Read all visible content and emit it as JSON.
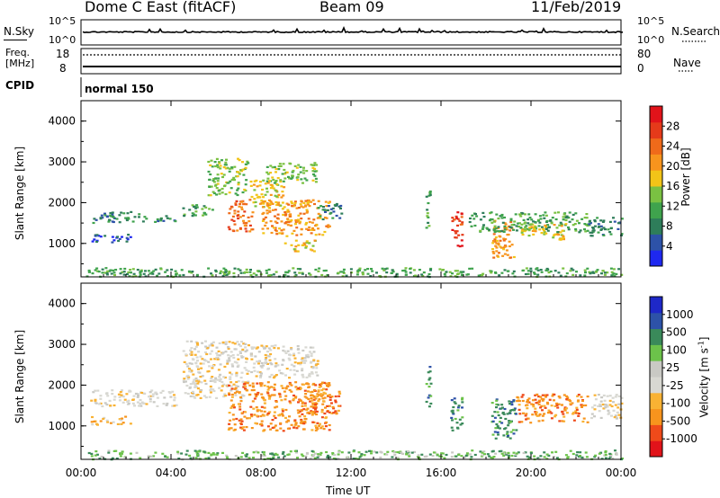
{
  "header": {
    "station": "Dome C East (fitACF)",
    "beam": "Beam 09",
    "date": "11/Feb/2019"
  },
  "small_panels": {
    "nsky_label": "N.Sky",
    "nsky_ticks": [
      "10^5",
      "10^0"
    ],
    "nsearch_label": "N.Search",
    "nsearch_ticks": [
      "10^5",
      "10^0"
    ],
    "freq_label_1": "Freq.",
    "freq_label_2": "[MHz]",
    "freq_ticks": [
      "18",
      "8"
    ],
    "nave_label": "Nave",
    "nave_ticks": [
      "80",
      "0"
    ],
    "cpid_label": "CPID",
    "cpid_text": "normal 150"
  },
  "colors": {
    "power_bar": [
      "#1e28f0",
      "#2d52a8",
      "#2e7d5a",
      "#3fa34d",
      "#7ac142",
      "#f2c418",
      "#f7941d",
      "#ef6a1a",
      "#e53a1a",
      "#e1131a"
    ],
    "velocity_bar": [
      "#e1131a",
      "#ef4a1a",
      "#f7941d",
      "#f9b233",
      "#d8d8d2",
      "#c9c9c4",
      "#6cc24a",
      "#3a8a5a",
      "#2d52a8",
      "#1e28c8"
    ]
  },
  "power_colorbar": {
    "label": "Power [dB]",
    "ticks": [
      "28",
      "24",
      "20",
      "16",
      "12",
      "8",
      "4"
    ]
  },
  "velocity_colorbar": {
    "label_main": "Velocity",
    "label_unit": "[m s",
    "label_sup": "-1",
    "label_close": "]",
    "ticks": [
      "1000",
      "500",
      "100",
      "25",
      "-25",
      "-100",
      "-500",
      "-1000"
    ]
  },
  "chart_data": {
    "type": "heatmap",
    "xlabel": "Time UT",
    "x_ticks": [
      "00:00",
      "04:00",
      "08:00",
      "12:00",
      "16:00",
      "20:00",
      "00:00"
    ],
    "ylabel": "Slant Range [km]",
    "y_ticks": [
      "4000",
      "3000",
      "2000",
      "1000"
    ],
    "xlim_hours": [
      0,
      24
    ],
    "ylim_km": [
      180,
      4500
    ],
    "panels": [
      {
        "name": "Power",
        "colorbar_unit": "dB",
        "scatter_blobs": [
          {
            "t0": 0.4,
            "t1": 2.6,
            "r0": 1500,
            "r1": 1800,
            "level": 2
          },
          {
            "t0": 2.6,
            "t1": 4.2,
            "r0": 1550,
            "r1": 1700,
            "level": 2
          },
          {
            "t0": 0.4,
            "t1": 2.2,
            "r0": 1050,
            "r1": 1250,
            "level": 1
          },
          {
            "t0": 4.5,
            "t1": 5.8,
            "r0": 1700,
            "r1": 2000,
            "level": 3
          },
          {
            "t0": 5.6,
            "t1": 7.4,
            "r0": 2200,
            "r1": 3100,
            "level": 4
          },
          {
            "t0": 6.5,
            "t1": 7.6,
            "r0": 1300,
            "r1": 2100,
            "level": 7
          },
          {
            "t0": 7.5,
            "t1": 9.0,
            "r0": 1900,
            "r1": 2600,
            "level": 5
          },
          {
            "t0": 8.0,
            "t1": 11.0,
            "r0": 1200,
            "r1": 2100,
            "level": 6
          },
          {
            "t0": 8.2,
            "t1": 10.5,
            "r0": 2500,
            "r1": 3000,
            "level": 4
          },
          {
            "t0": 9.0,
            "t1": 10.4,
            "r0": 800,
            "r1": 1100,
            "level": 5
          },
          {
            "t0": 10.5,
            "t1": 11.6,
            "r0": 1600,
            "r1": 2000,
            "level": 2
          },
          {
            "t0": 15.3,
            "t1": 15.5,
            "r0": 1400,
            "r1": 2500,
            "level": 3
          },
          {
            "t0": 16.4,
            "t1": 16.9,
            "r0": 900,
            "r1": 1800,
            "level": 8
          },
          {
            "t0": 18.2,
            "t1": 19.2,
            "r0": 600,
            "r1": 1600,
            "level": 6
          },
          {
            "t0": 17.2,
            "t1": 22.5,
            "r0": 1300,
            "r1": 1800,
            "level": 3
          },
          {
            "t0": 19.5,
            "t1": 21.5,
            "r0": 1100,
            "r1": 1500,
            "level": 5
          },
          {
            "t0": 22.5,
            "t1": 24.0,
            "r0": 1200,
            "r1": 1700,
            "level": 2
          },
          {
            "t0": 0.2,
            "t1": 24.0,
            "r0": 200,
            "r1": 420,
            "level": 3
          }
        ]
      },
      {
        "name": "Velocity",
        "colorbar_unit": "m s^-1",
        "scatter_blobs": [
          {
            "t0": 0.4,
            "t1": 4.2,
            "r0": 1500,
            "r1": 1900,
            "level": 4
          },
          {
            "t0": 0.4,
            "t1": 2.2,
            "r0": 1050,
            "r1": 1250,
            "level": 3
          },
          {
            "t0": 4.5,
            "t1": 7.4,
            "r0": 1700,
            "r1": 3100,
            "level": 4
          },
          {
            "t0": 6.5,
            "t1": 11.0,
            "r0": 900,
            "r1": 2100,
            "level": 2
          },
          {
            "t0": 7.5,
            "t1": 10.5,
            "r0": 2200,
            "r1": 3000,
            "level": 4
          },
          {
            "t0": 10.0,
            "t1": 11.5,
            "r0": 1300,
            "r1": 1900,
            "level": 2
          },
          {
            "t0": 15.3,
            "t1": 15.5,
            "r0": 1400,
            "r1": 2500,
            "level": 7
          },
          {
            "t0": 16.4,
            "t1": 16.9,
            "r0": 900,
            "r1": 1800,
            "level": 7
          },
          {
            "t0": 18.2,
            "t1": 19.3,
            "r0": 700,
            "r1": 1700,
            "level": 7
          },
          {
            "t0": 19.3,
            "t1": 22.5,
            "r0": 1100,
            "r1": 1800,
            "level": 2
          },
          {
            "t0": 22.6,
            "t1": 24.0,
            "r0": 1200,
            "r1": 1800,
            "level": 4
          },
          {
            "t0": 0.2,
            "t1": 24.0,
            "r0": 200,
            "r1": 420,
            "level": 6
          }
        ]
      }
    ]
  }
}
